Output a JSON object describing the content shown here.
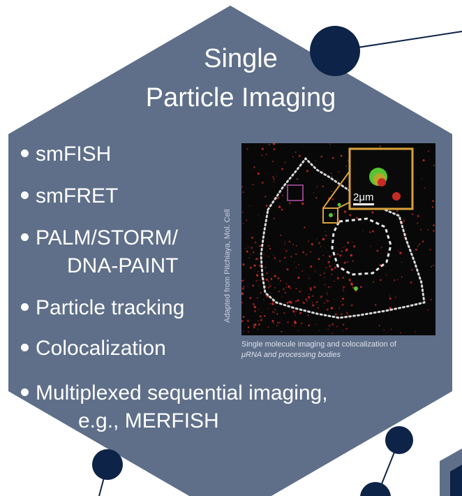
{
  "title": {
    "line1": "Single",
    "line2": "Particle Imaging"
  },
  "bullets": [
    {
      "text": "smFISH"
    },
    {
      "text": "smFRET"
    },
    {
      "text": "PALM/STORM/",
      "continuation": "DNA-PAINT"
    },
    {
      "text": "Particle tracking"
    },
    {
      "text": "Colocalization"
    },
    {
      "text": "Multiplexed sequential imaging,",
      "continuation": "e.g., MERFISH"
    }
  ],
  "figure": {
    "scale_bar_label": "2μm",
    "credit": "Adapted from Pitchiaya, Mol. Cell",
    "caption_line1": "Single molecule imaging and colocalization of",
    "caption_line2": "μRNA and processing bodies"
  },
  "colors": {
    "hexagon": "#5f6f89",
    "node": "#0d2347",
    "inset_box": "#d9a23a",
    "roi_box": "#8e3f86",
    "dots": "#c62b26",
    "colocalized": "#55c531"
  }
}
